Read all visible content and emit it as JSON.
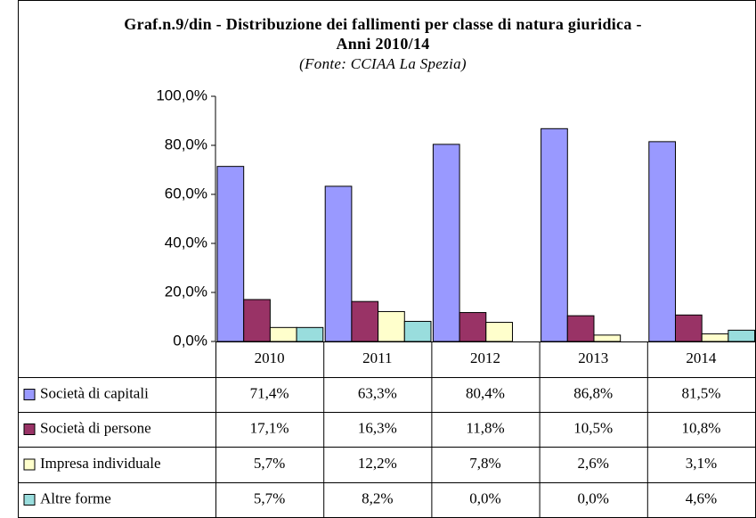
{
  "chart_data": {
    "type": "bar",
    "title": "Graf.n.9/din - Distribuzione dei fallimenti per classe di natura giuridica - Anni 2010/14",
    "subtitle": "(Fonte: CCIAA La Spezia)",
    "categories": [
      "2010",
      "2011",
      "2012",
      "2013",
      "2014"
    ],
    "series": [
      {
        "name": "Società di capitali",
        "color": "#9999ff",
        "values": [
          71.4,
          63.3,
          80.4,
          86.8,
          81.5
        ],
        "value_labels": [
          "71,4%",
          "63,3%",
          "80,4%",
          "86,8%",
          "81,5%"
        ]
      },
      {
        "name": "Società di persone",
        "color": "#993366",
        "values": [
          17.1,
          16.3,
          11.8,
          10.5,
          10.8
        ],
        "value_labels": [
          "17,1%",
          "16,3%",
          "11,8%",
          "10,5%",
          "10,8%"
        ]
      },
      {
        "name": "Impresa individuale",
        "color": "#ffffcc",
        "values": [
          5.7,
          12.2,
          7.8,
          2.6,
          3.1
        ],
        "value_labels": [
          "5,7%",
          "12,2%",
          "7,8%",
          "2,6%",
          "3,1%"
        ]
      },
      {
        "name": "Altre forme",
        "color": "#99dddd",
        "values": [
          5.7,
          8.2,
          0.0,
          0.0,
          4.6
        ],
        "value_labels": [
          "5,7%",
          "8,2%",
          "0,0%",
          "0,0%",
          "4,6%"
        ]
      }
    ],
    "ylim": [
      0,
      100
    ],
    "yticks": [
      {
        "value": 0,
        "label": "0,0%"
      },
      {
        "value": 20,
        "label": "20,0%"
      },
      {
        "value": 40,
        "label": "40,0%"
      },
      {
        "value": 60,
        "label": "60,0%"
      },
      {
        "value": 80,
        "label": "80,0%"
      },
      {
        "value": 100,
        "label": "100,0%"
      }
    ],
    "grid": false
  }
}
